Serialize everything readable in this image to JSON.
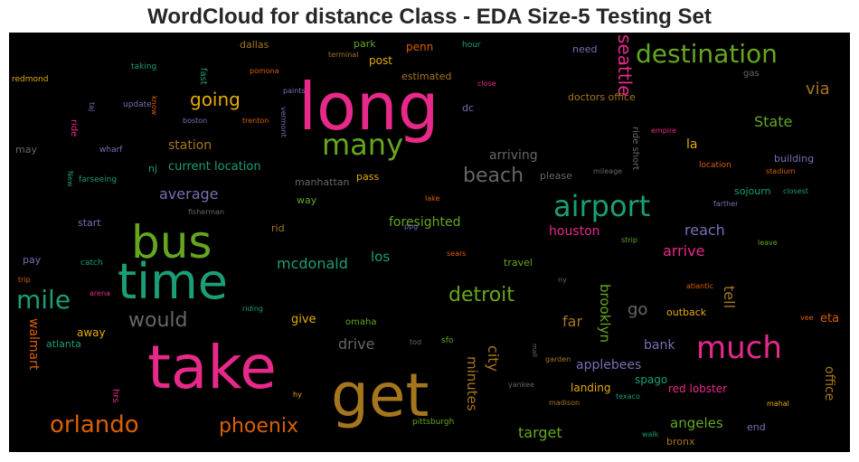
{
  "chart_title": "WordCloud for distance Class - EDA Size-5 Testing Set",
  "chart_data": {
    "type": "wordcloud",
    "title": "WordCloud for distance Class - EDA Size-5 Testing Set",
    "background": "#000000",
    "palette": [
      "#e7298a",
      "#1b9e77",
      "#66a61e",
      "#d95f02",
      "#7570b3",
      "#e6ab02",
      "#a6761d",
      "#666666"
    ],
    "words": [
      {
        "text": "long",
        "color": "#e7298a"
      },
      {
        "text": "take",
        "color": "#e7298a"
      },
      {
        "text": "get",
        "color": "#a6761d"
      },
      {
        "text": "time",
        "color": "#1b9e77"
      },
      {
        "text": "bus",
        "color": "#66a61e"
      },
      {
        "text": "much",
        "color": "#e7298a"
      },
      {
        "text": "airport",
        "color": "#1b9e77"
      },
      {
        "text": "many",
        "color": "#66a61e"
      },
      {
        "text": "destination",
        "color": "#66a61e"
      },
      {
        "text": "mile",
        "color": "#1b9e77"
      },
      {
        "text": "orlando",
        "color": "#d95f02"
      },
      {
        "text": "phoenix",
        "color": "#d95f02"
      },
      {
        "text": "detroit",
        "color": "#66a61e"
      },
      {
        "text": "beach",
        "color": "#666666"
      },
      {
        "text": "would",
        "color": "#666666"
      },
      {
        "text": "going",
        "color": "#e6ab02"
      },
      {
        "text": "seattle",
        "color": "#e7298a"
      },
      {
        "text": "via",
        "color": "#a6761d"
      },
      {
        "text": "State",
        "color": "#66a61e"
      },
      {
        "text": "average",
        "color": "#7570b3"
      },
      {
        "text": "mcdonald",
        "color": "#1b9e77"
      },
      {
        "text": "arrive",
        "color": "#e7298a"
      },
      {
        "text": "reach",
        "color": "#7570b3"
      },
      {
        "text": "go",
        "color": "#666666"
      },
      {
        "text": "tell",
        "color": "#a6761d"
      },
      {
        "text": "far",
        "color": "#a6761d"
      },
      {
        "text": "drive",
        "color": "#666666"
      },
      {
        "text": "brooklyn",
        "color": "#66a61e"
      },
      {
        "text": "city",
        "color": "#a6761d"
      },
      {
        "text": "minutes",
        "color": "#a6761d"
      },
      {
        "text": "target",
        "color": "#66a61e"
      },
      {
        "text": "angeles",
        "color": "#66a61e"
      },
      {
        "text": "foresighted",
        "color": "#66a61e"
      },
      {
        "text": "los",
        "color": "#1b9e77"
      },
      {
        "text": "walmart",
        "color": "#d95f02"
      },
      {
        "text": "office",
        "color": "#a6761d"
      },
      {
        "text": "station",
        "color": "#a6761d"
      },
      {
        "text": "current location",
        "color": "#1b9e77"
      },
      {
        "text": "arriving",
        "color": "#666666"
      },
      {
        "text": "houston",
        "color": "#e7298a"
      },
      {
        "text": "la",
        "color": "#e6ab02"
      },
      {
        "text": "bank",
        "color": "#7570b3"
      },
      {
        "text": "applebees",
        "color": "#7570b3"
      },
      {
        "text": "give",
        "color": "#e6ab02"
      },
      {
        "text": "eta",
        "color": "#d95f02"
      },
      {
        "text": "building",
        "color": "#7570b3"
      },
      {
        "text": "sojourn",
        "color": "#1b9e77"
      },
      {
        "text": "spago",
        "color": "#1b9e77"
      },
      {
        "text": "landing",
        "color": "#e6ab02"
      },
      {
        "text": "red lobster",
        "color": "#e7298a"
      },
      {
        "text": "outback",
        "color": "#e6ab02"
      },
      {
        "text": "end",
        "color": "#7570b3"
      },
      {
        "text": "bronx",
        "color": "#a6761d"
      },
      {
        "text": "atlanta",
        "color": "#1b9e77"
      },
      {
        "text": "away",
        "color": "#e6ab02"
      },
      {
        "text": "hrs",
        "color": "#e7298a"
      },
      {
        "text": "park",
        "color": "#66a61e"
      },
      {
        "text": "dallas",
        "color": "#a6761d"
      },
      {
        "text": "penn",
        "color": "#d95f02"
      },
      {
        "text": "post",
        "color": "#e6ab02"
      },
      {
        "text": "estimated",
        "color": "#a6761d"
      },
      {
        "text": "need",
        "color": "#7570b3"
      },
      {
        "text": "hour",
        "color": "#1b9e77"
      },
      {
        "text": "doctors office",
        "color": "#a6761d"
      },
      {
        "text": "dc",
        "color": "#7570b3"
      },
      {
        "text": "gas",
        "color": "#666666"
      },
      {
        "text": "manhattan",
        "color": "#666666"
      },
      {
        "text": "pass",
        "color": "#e6ab02"
      },
      {
        "text": "please",
        "color": "#666666"
      },
      {
        "text": "way",
        "color": "#66a61e"
      },
      {
        "text": "rid",
        "color": "#a6761d"
      },
      {
        "text": "nj",
        "color": "#1b9e77"
      },
      {
        "text": "start",
        "color": "#7570b3"
      },
      {
        "text": "pay",
        "color": "#7570b3"
      },
      {
        "text": "ride short",
        "color": "#666666"
      },
      {
        "text": "ride",
        "color": "#e7298a"
      },
      {
        "text": "may",
        "color": "#666666"
      },
      {
        "text": "travel",
        "color": "#66a61e"
      },
      {
        "text": "omaha",
        "color": "#66a61e"
      },
      {
        "text": "fast",
        "color": "#1b9e77"
      },
      {
        "text": "paints",
        "color": "#7570b3"
      },
      {
        "text": "taking",
        "color": "#1b9e77"
      },
      {
        "text": "update",
        "color": "#7570b3"
      },
      {
        "text": "redmond",
        "color": "#e6ab02"
      },
      {
        "text": "terminal",
        "color": "#a6761d"
      },
      {
        "text": "close",
        "color": "#e7298a"
      },
      {
        "text": "boston",
        "color": "#7570b3"
      },
      {
        "text": "trenton",
        "color": "#d95f02"
      },
      {
        "text": "vermont",
        "color": "#7570b3"
      },
      {
        "text": "pomona",
        "color": "#d95f02"
      },
      {
        "text": "know",
        "color": "#d95f02"
      },
      {
        "text": "taj",
        "color": "#7570b3"
      },
      {
        "text": "wharf",
        "color": "#7570b3"
      },
      {
        "text": "New",
        "color": "#1b9e77"
      },
      {
        "text": "farseeing",
        "color": "#1b9e77"
      },
      {
        "text": "fisherman",
        "color": "#666666"
      },
      {
        "text": "mileage",
        "color": "#666666"
      },
      {
        "text": "location",
        "color": "#d95f02"
      },
      {
        "text": "stadium",
        "color": "#d95f02"
      },
      {
        "text": "closest",
        "color": "#1b9e77"
      },
      {
        "text": "farther",
        "color": "#7570b3"
      },
      {
        "text": "empire",
        "color": "#e7298a"
      },
      {
        "text": "lake",
        "color": "#d95f02"
      },
      {
        "text": "ppg",
        "color": "#7570b3"
      },
      {
        "text": "sears",
        "color": "#d95f02"
      },
      {
        "text": "strip",
        "color": "#66a61e"
      },
      {
        "text": "leave",
        "color": "#66a61e"
      },
      {
        "text": "catch",
        "color": "#1b9e77"
      },
      {
        "text": "trip",
        "color": "#d95f02"
      },
      {
        "text": "arena",
        "color": "#e7298a"
      },
      {
        "text": "riding",
        "color": "#1b9e77"
      },
      {
        "text": "ny",
        "color": "#666666"
      },
      {
        "text": "atlantic",
        "color": "#d95f02"
      },
      {
        "text": "vee",
        "color": "#d95f02"
      },
      {
        "text": "tod",
        "color": "#666666"
      },
      {
        "text": "sfo",
        "color": "#66a61e"
      },
      {
        "text": "mall",
        "color": "#666666"
      },
      {
        "text": "garden",
        "color": "#a6761d"
      },
      {
        "text": "yankee",
        "color": "#666666"
      },
      {
        "text": "madison",
        "color": "#a6761d"
      },
      {
        "text": "texaco",
        "color": "#1b9e77"
      },
      {
        "text": "walk",
        "color": "#1b9e77"
      },
      {
        "text": "mahal",
        "color": "#e6ab02"
      },
      {
        "text": "hy",
        "color": "#e6ab02"
      },
      {
        "text": "pittsburgh",
        "color": "#66a61e"
      }
    ]
  }
}
